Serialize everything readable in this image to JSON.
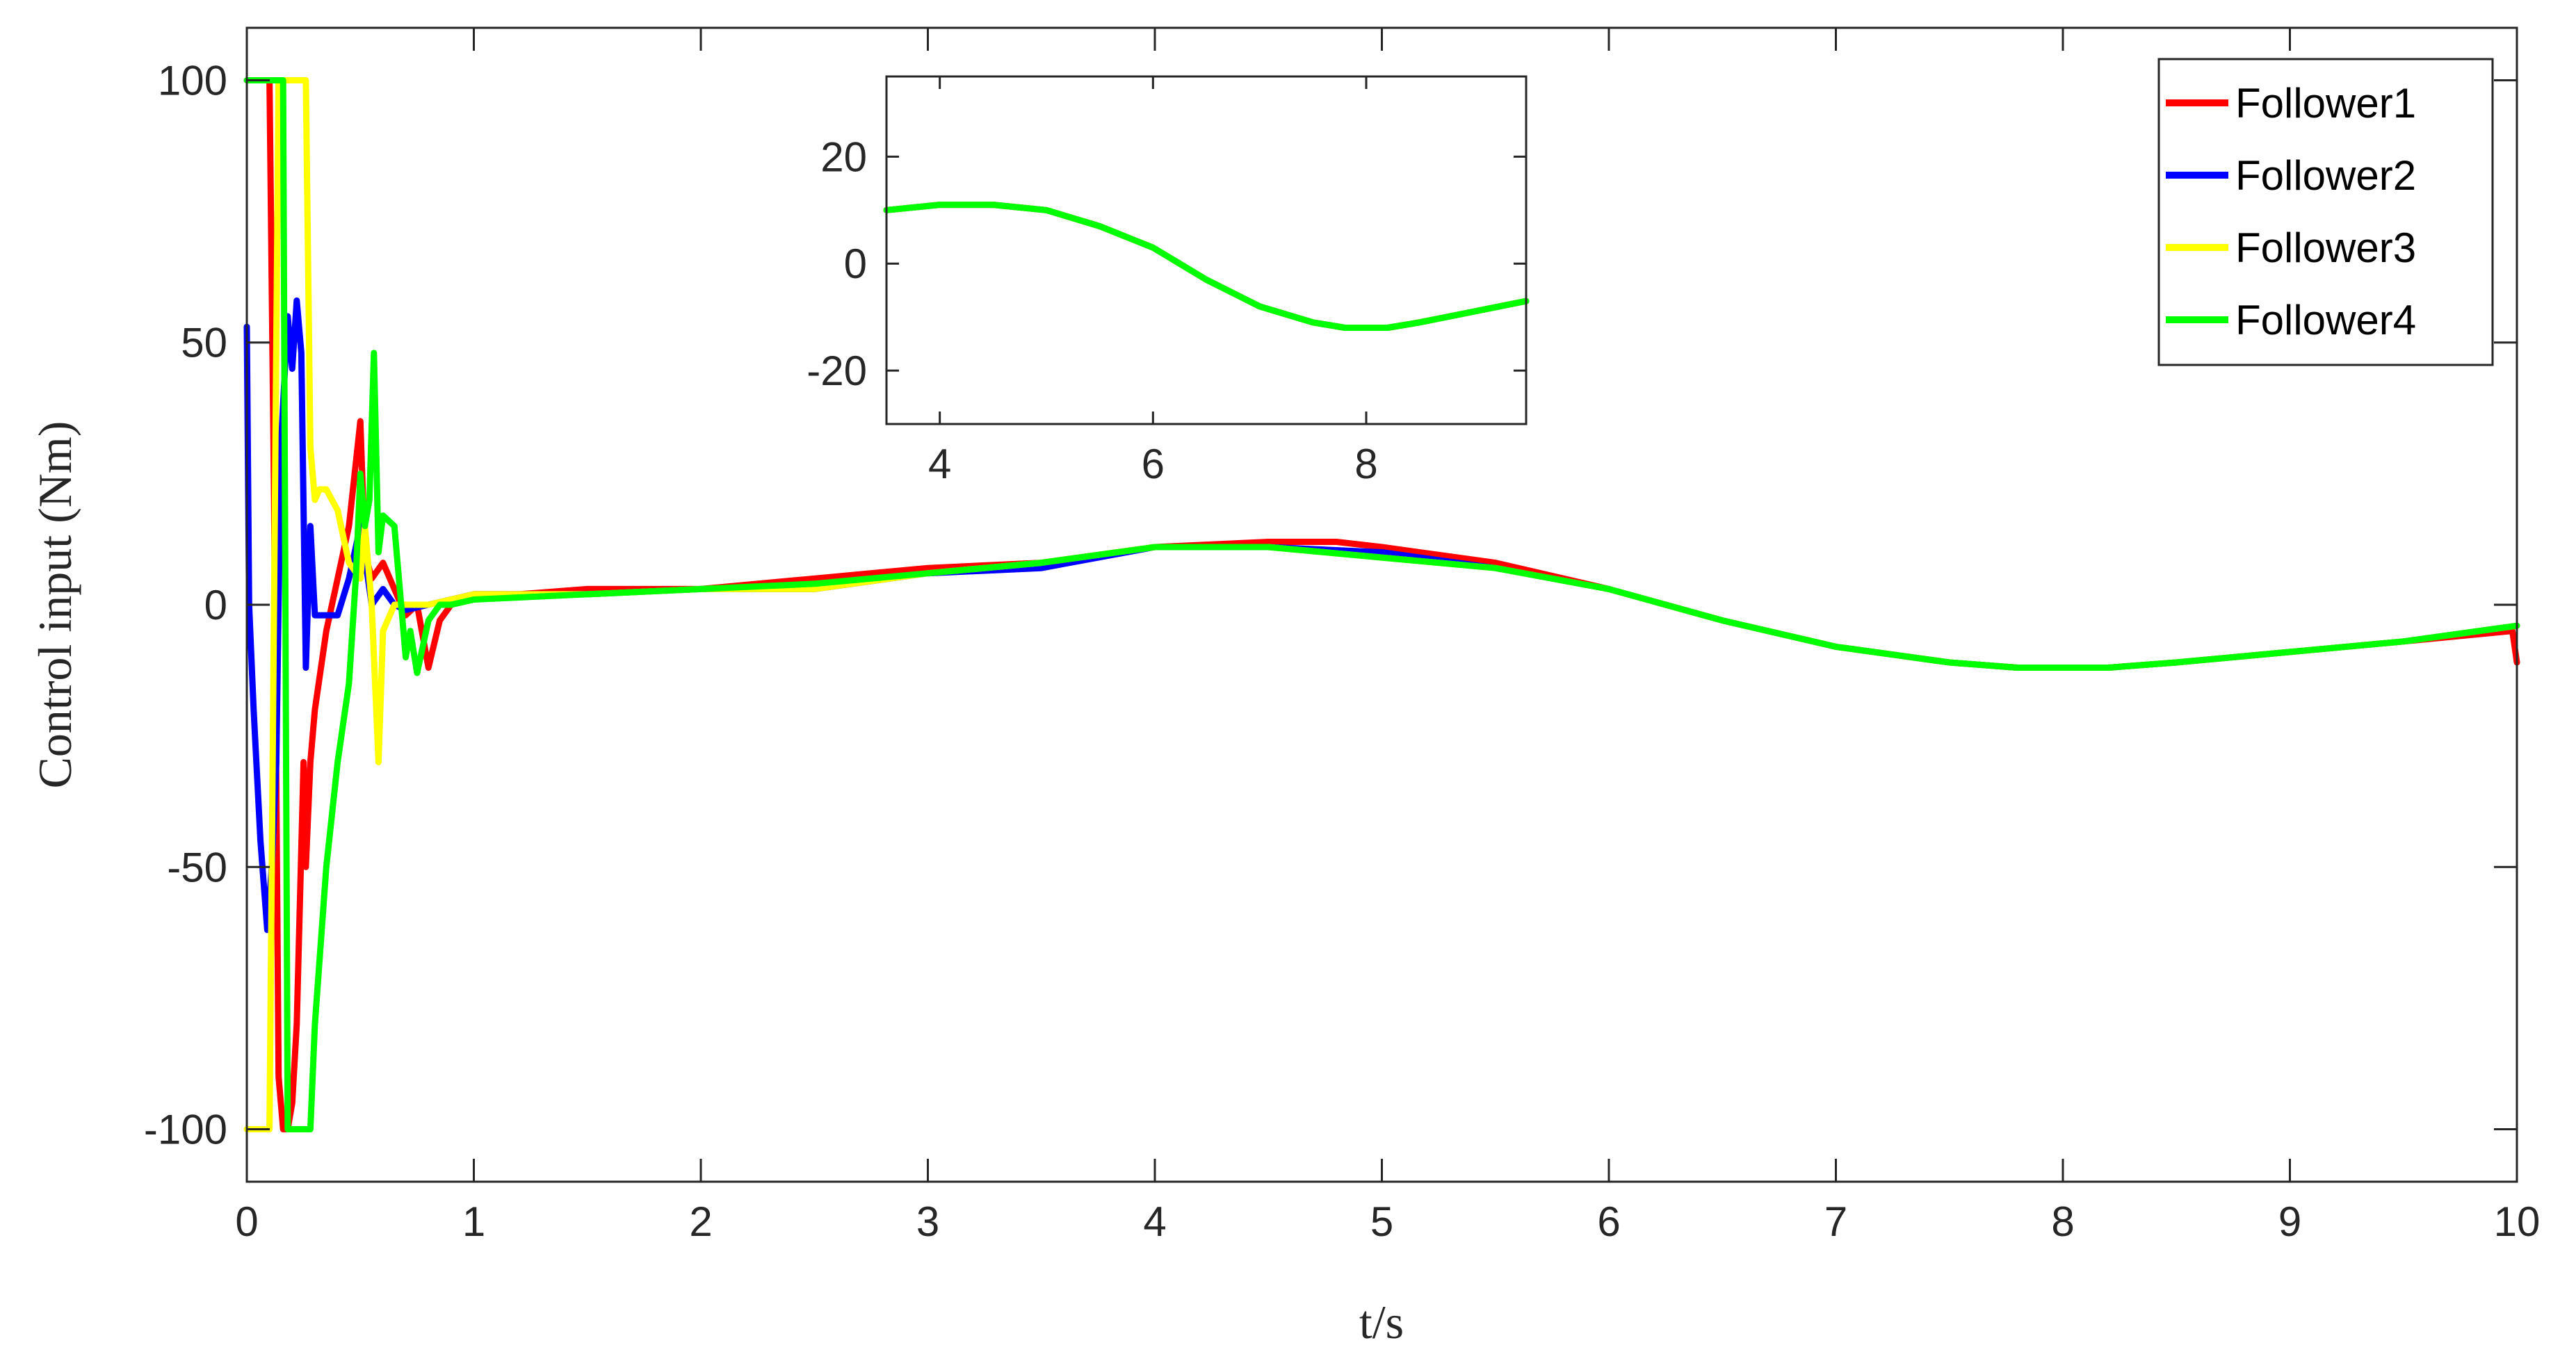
{
  "chart_data": [
    {
      "type": "line",
      "xlabel": "t/s",
      "ylabel": "Control input (Nm)",
      "xlim": [
        0,
        10
      ],
      "ylim": [
        -110,
        110
      ],
      "xticks": [
        0,
        1,
        2,
        3,
        4,
        5,
        6,
        7,
        8,
        9,
        10
      ],
      "xtick_labels": [
        "0",
        "1",
        "2",
        "3",
        "4",
        "5",
        "6",
        "7",
        "8",
        "9",
        "10"
      ],
      "yticks": [
        -100,
        -50,
        0,
        50,
        100
      ],
      "ytick_labels": [
        "-100",
        "-50",
        "0",
        "50",
        "100"
      ],
      "grid": false,
      "legend_position": "top-right",
      "series": [
        {
          "name": "Follower1",
          "color": "#ff0000",
          "x": [
            0,
            0.09,
            0.1,
            0.12,
            0.14,
            0.16,
            0.18,
            0.2,
            0.22,
            0.25,
            0.26,
            0.28,
            0.3,
            0.35,
            0.4,
            0.45,
            0.5,
            0.52,
            0.55,
            0.6,
            0.65,
            0.7,
            0.75,
            0.8,
            0.85,
            0.9,
            1.0,
            1.2,
            1.5,
            2.0,
            2.5,
            3.0,
            3.5,
            4.0,
            4.5,
            4.8,
            5.0,
            5.5,
            6.0,
            6.5,
            7.0,
            7.5,
            7.8,
            8.0,
            8.2,
            8.5,
            9.0,
            9.5,
            9.98,
            10.0
          ],
          "y": [
            100,
            100,
            100,
            20,
            -90,
            -100,
            -100,
            -95,
            -80,
            -30,
            -50,
            -30,
            -20,
            -5,
            5,
            15,
            35,
            10,
            5,
            8,
            3,
            -2,
            0,
            -12,
            -3,
            0,
            2,
            2,
            3,
            3,
            5,
            7,
            8,
            11,
            12,
            12,
            11,
            8,
            3,
            -3,
            -8,
            -11,
            -12,
            -12,
            -12,
            -11,
            -9,
            -7,
            -5,
            -11
          ]
        },
        {
          "name": "Follower2",
          "color": "#0000ff",
          "x": [
            0,
            0.01,
            0.03,
            0.06,
            0.09,
            0.11,
            0.13,
            0.15,
            0.18,
            0.2,
            0.22,
            0.24,
            0.26,
            0.28,
            0.3,
            0.35,
            0.4,
            0.45,
            0.5,
            0.55,
            0.6,
            0.65,
            0.7,
            0.8,
            1.0,
            1.5,
            2.0,
            2.5,
            3.0,
            3.5,
            4.0,
            4.5,
            5.0,
            5.5,
            6.0,
            6.5,
            7.0,
            7.5,
            7.8,
            8.0,
            8.2,
            8.5,
            9.0,
            9.5,
            10.0
          ],
          "y": [
            53,
            0,
            -20,
            -45,
            -62,
            -50,
            -30,
            30,
            55,
            45,
            58,
            48,
            -12,
            15,
            -2,
            -2,
            -2,
            5,
            15,
            0,
            3,
            0,
            -1,
            0,
            2,
            2,
            3,
            3,
            6,
            7,
            11,
            11,
            10,
            7,
            3,
            -3,
            -8,
            -11,
            -12,
            -12,
            -12,
            -11,
            -9,
            -7,
            -4
          ]
        },
        {
          "name": "Follower3",
          "color": "#ffff00",
          "x": [
            0,
            0.1,
            0.14,
            0.16,
            0.18,
            0.2,
            0.24,
            0.26,
            0.28,
            0.3,
            0.32,
            0.35,
            0.4,
            0.45,
            0.5,
            0.52,
            0.55,
            0.58,
            0.6,
            0.65,
            0.7,
            0.8,
            1.0,
            1.5,
            2.0,
            2.5,
            3.0,
            3.5,
            4.0,
            4.5,
            5.0,
            5.5,
            6.0,
            6.5,
            7.0,
            7.5,
            7.8,
            8.0,
            8.2,
            8.5,
            9.0,
            9.5,
            10.0
          ],
          "y": [
            -100,
            -100,
            100,
            100,
            100,
            100,
            100,
            100,
            30,
            20,
            22,
            22,
            18,
            8,
            5,
            15,
            0,
            -30,
            -5,
            0,
            0,
            0,
            2,
            2,
            3,
            3,
            6,
            8,
            11,
            11,
            9,
            7,
            3,
            -3,
            -8,
            -11,
            -12,
            -12,
            -12,
            -11,
            -9,
            -7,
            -4
          ]
        },
        {
          "name": "Follower4",
          "color": "#00ff00",
          "x": [
            0,
            0.14,
            0.16,
            0.18,
            0.2,
            0.22,
            0.24,
            0.26,
            0.28,
            0.3,
            0.35,
            0.4,
            0.45,
            0.48,
            0.5,
            0.52,
            0.54,
            0.56,
            0.58,
            0.6,
            0.65,
            0.68,
            0.7,
            0.72,
            0.75,
            0.8,
            0.85,
            0.9,
            1.0,
            1.5,
            2.0,
            2.5,
            3.0,
            3.5,
            4.0,
            4.5,
            5.0,
            5.5,
            6.0,
            6.5,
            7.0,
            7.5,
            7.8,
            8.0,
            8.2,
            8.5,
            9.0,
            9.5,
            10.0
          ],
          "y": [
            100,
            100,
            100,
            -100,
            -100,
            -100,
            -100,
            -100,
            -100,
            -80,
            -50,
            -30,
            -15,
            5,
            25,
            15,
            20,
            48,
            10,
            17,
            15,
            0,
            -10,
            -5,
            -13,
            -3,
            0,
            0,
            1,
            2,
            3,
            4,
            6,
            8,
            11,
            11,
            9,
            7,
            3,
            -3,
            -8,
            -11,
            -12,
            -12,
            -12,
            -11,
            -9,
            -7,
            -4
          ]
        }
      ]
    },
    {
      "type": "line",
      "xlim": [
        3.5,
        9.5
      ],
      "ylim": [
        -30,
        35
      ],
      "xticks": [
        4,
        6,
        8
      ],
      "xtick_labels": [
        "4",
        "6",
        "8"
      ],
      "yticks": [
        -20,
        0,
        20
      ],
      "ytick_labels": [
        "-20",
        "0",
        "20"
      ],
      "grid": false,
      "series": [
        {
          "name": "Follower1",
          "color": "#ff0000",
          "x": [
            3.5,
            4.0,
            4.5,
            5.0,
            5.5,
            6.0,
            6.5,
            7.0,
            7.5,
            7.8,
            8.0,
            8.2,
            8.5,
            9.0,
            9.5
          ],
          "y": [
            10,
            11,
            11,
            10,
            7,
            3,
            -3,
            -8,
            -11,
            -12,
            -12,
            -12,
            -11,
            -9,
            -7
          ]
        },
        {
          "name": "Follower2",
          "color": "#0000ff",
          "x": [
            3.5,
            4.0,
            4.5,
            5.0,
            5.5,
            6.0,
            6.5,
            7.0,
            7.5,
            7.8,
            8.0,
            8.2,
            8.5,
            9.0,
            9.5
          ],
          "y": [
            10,
            11,
            11,
            10,
            7,
            3,
            -3,
            -8,
            -11,
            -12,
            -12,
            -12,
            -11,
            -9,
            -7
          ]
        },
        {
          "name": "Follower3",
          "color": "#ffff00",
          "x": [
            3.5,
            4.0,
            4.5,
            5.0,
            5.5,
            6.0,
            6.5,
            7.0,
            7.5,
            7.8,
            8.0,
            8.2,
            8.5,
            9.0,
            9.5
          ],
          "y": [
            10,
            11,
            11,
            10,
            7,
            3,
            -3,
            -8,
            -11,
            -12,
            -12,
            -12,
            -11,
            -9,
            -7
          ]
        },
        {
          "name": "Follower4",
          "color": "#00ff00",
          "x": [
            3.5,
            4.0,
            4.5,
            5.0,
            5.5,
            6.0,
            6.5,
            7.0,
            7.5,
            7.8,
            8.0,
            8.2,
            8.5,
            9.0,
            9.5
          ],
          "y": [
            10,
            11,
            11,
            10,
            7,
            3,
            -3,
            -8,
            -11,
            -12,
            -12,
            -12,
            -11,
            -9,
            -7
          ]
        }
      ]
    }
  ]
}
